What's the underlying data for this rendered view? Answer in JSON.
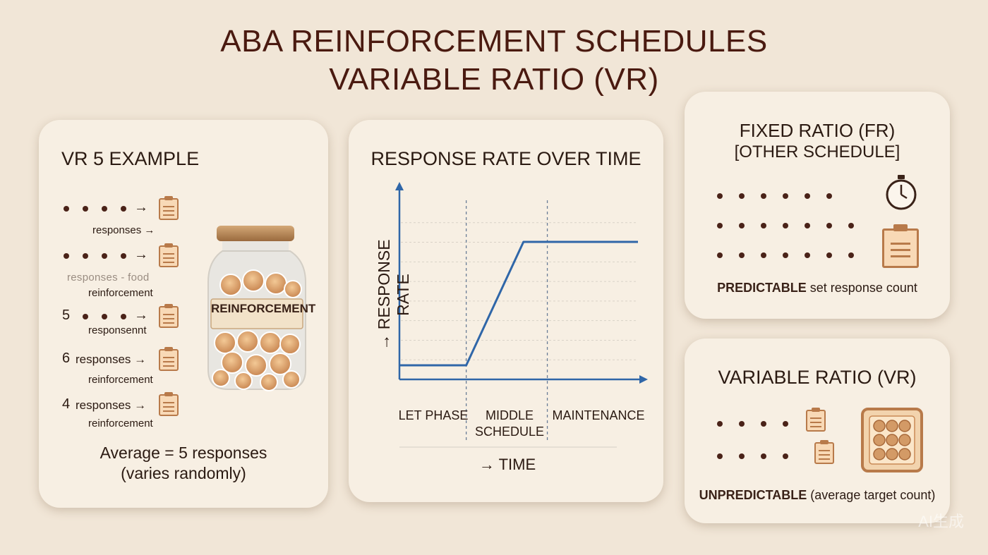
{
  "header": {
    "title_line1": "ABA REINFORCEMENT SCHEDULES",
    "title_line2": "VARIABLE RATIO (VR)"
  },
  "vr5": {
    "heading": "VR 5 EXAMPLE",
    "row1_label": "responses →",
    "row2_label_faded": "responses - food",
    "row2_label": "reinforcement",
    "row3_count": "5",
    "row3_label": "responsennt",
    "row4_count": "6",
    "row4_text": "responses →",
    "row4_label": "reinforcement",
    "row5_count": "4",
    "row5_text": "responses →",
    "row5_label": "reinforcement",
    "jar_label": "REINFORCEMENT",
    "average_line1": "Average = 5 responses",
    "average_line2": "(varies randomly)"
  },
  "chart": {
    "heading": "RESPONSE RATE OVER TIME",
    "y_label": "→ RESPONSE RATE",
    "x_label": "→ TIME",
    "phase1": "LET PHASE",
    "phase2_line1": "MIDDLE",
    "phase2_line2": "SCHEDULE",
    "phase3": "MAINTENANCE"
  },
  "chart_data": {
    "type": "line",
    "title": "RESPONSE RATE OVER TIME",
    "xlabel": "→ TIME",
    "ylabel": "→ RESPONSE RATE",
    "categories": [
      "LET PHASE",
      "MIDDLE SCHEDULE",
      "MAINTENANCE"
    ],
    "x": [
      0,
      0.28,
      0.52,
      1.0
    ],
    "y": [
      0.08,
      0.08,
      0.78,
      0.78
    ],
    "xlim": [
      0,
      1
    ],
    "ylim": [
      0,
      1
    ],
    "grid": true,
    "series": [
      {
        "values": [
          0.08,
          0.08,
          0.78,
          0.78
        ],
        "color": "#2f66a8"
      }
    ]
  },
  "fr": {
    "heading_line1": "FIXED RATIO (FR)",
    "heading_line2": "[OTHER SCHEDULE]",
    "caption_bold": "PREDICTABLE",
    "caption_rest": " set response count"
  },
  "vr": {
    "heading": "VARIABLE RATIO (VR)",
    "caption_bold": "UNPREDICTABLE",
    "caption_rest": " (average target count)"
  },
  "watermark": "AI生成",
  "colors": {
    "background": "#f1e6d7",
    "card": "#f7efe3",
    "title": "#4a1a10",
    "dot": "#4a2218",
    "icon": "#b87a4a",
    "line": "#2f66a8"
  }
}
